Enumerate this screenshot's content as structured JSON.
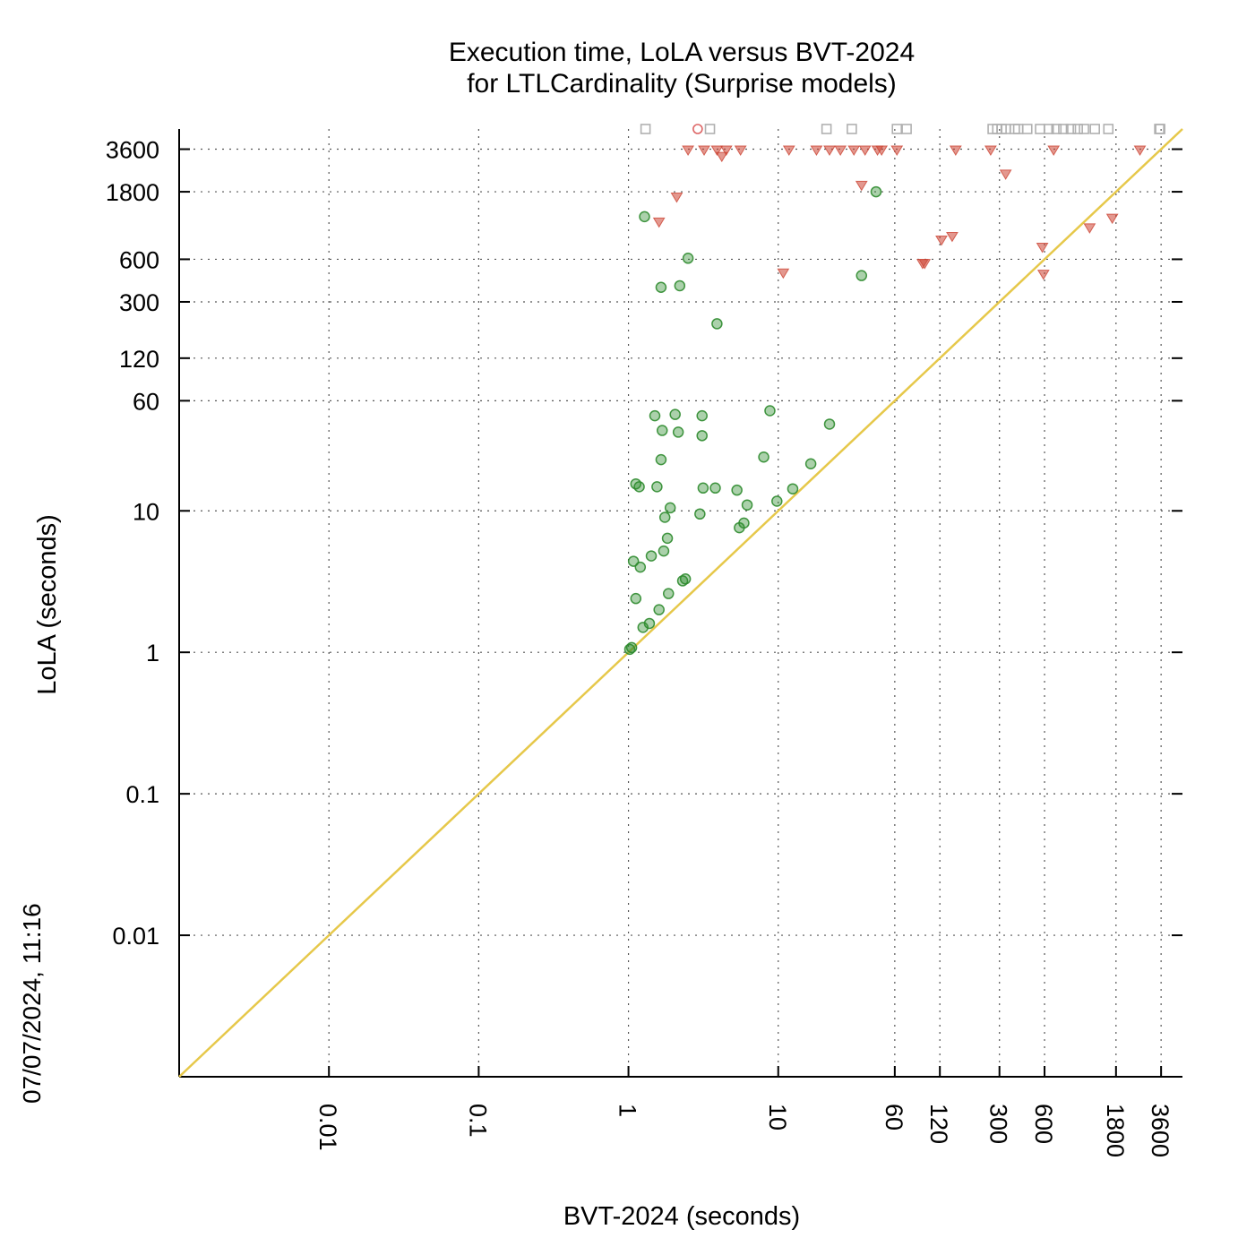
{
  "chart_data": {
    "type": "scatter",
    "title": "Execution time, LoLA versus BVT-2024",
    "subtitle": "for LTLCardinality (Surprise models)",
    "xlabel": "BVT-2024 (seconds)",
    "ylabel": "LoLA (seconds)",
    "timestamp": "07/07/2024, 11:16",
    "x_scale": "log",
    "y_scale": "log",
    "xlim": [
      0.001,
      5000
    ],
    "ylim": [
      0.001,
      5000
    ],
    "grid": true,
    "x_ticks": [
      {
        "value": 0.01,
        "label": "0.01"
      },
      {
        "value": 0.1,
        "label": "0.1"
      },
      {
        "value": 1,
        "label": "1"
      },
      {
        "value": 10,
        "label": "10"
      },
      {
        "value": 60,
        "label": "60"
      },
      {
        "value": 120,
        "label": "120"
      },
      {
        "value": 300,
        "label": "300"
      },
      {
        "value": 600,
        "label": "600"
      },
      {
        "value": 1800,
        "label": "1800"
      },
      {
        "value": 3600,
        "label": "3600"
      }
    ],
    "y_ticks": [
      {
        "value": 0.01,
        "label": "0.01"
      },
      {
        "value": 0.1,
        "label": "0.1"
      },
      {
        "value": 1,
        "label": "1"
      },
      {
        "value": 10,
        "label": "10"
      },
      {
        "value": 60,
        "label": "60"
      },
      {
        "value": 120,
        "label": "120"
      },
      {
        "value": 300,
        "label": "300"
      },
      {
        "value": 600,
        "label": "600"
      },
      {
        "value": 1800,
        "label": "1800"
      },
      {
        "value": 3600,
        "label": "3600"
      }
    ],
    "diagonal": {
      "from": 0.001,
      "to": 5000,
      "color": "#e6c84a"
    },
    "series": [
      {
        "marker": "circle",
        "color": "#2e8b2e",
        "points": [
          [
            1.02,
            1.05
          ],
          [
            1.05,
            1.08
          ],
          [
            1.08,
            4.4
          ],
          [
            1.12,
            2.4
          ],
          [
            1.12,
            15.5
          ],
          [
            1.18,
            14.8
          ],
          [
            1.2,
            4.0
          ],
          [
            1.25,
            1.5
          ],
          [
            1.28,
            1200
          ],
          [
            1.38,
            1.6
          ],
          [
            1.42,
            4.8
          ],
          [
            1.5,
            47
          ],
          [
            1.55,
            14.8
          ],
          [
            1.6,
            2.0
          ],
          [
            1.65,
            23
          ],
          [
            1.65,
            380
          ],
          [
            1.68,
            37
          ],
          [
            1.72,
            5.2
          ],
          [
            1.75,
            9.0
          ],
          [
            1.82,
            6.4
          ],
          [
            1.85,
            2.6
          ],
          [
            1.9,
            10.5
          ],
          [
            2.05,
            48
          ],
          [
            2.15,
            36
          ],
          [
            2.2,
            390
          ],
          [
            2.3,
            3.2
          ],
          [
            2.4,
            3.3
          ],
          [
            2.5,
            610
          ],
          [
            3.0,
            9.5
          ],
          [
            3.1,
            47
          ],
          [
            3.1,
            34
          ],
          [
            3.15,
            14.5
          ],
          [
            3.8,
            14.5
          ],
          [
            3.9,
            210
          ],
          [
            5.3,
            14.0
          ],
          [
            5.5,
            7.6
          ],
          [
            5.9,
            8.2
          ],
          [
            6.2,
            11.0
          ],
          [
            8.0,
            24
          ],
          [
            8.8,
            51
          ],
          [
            9.8,
            11.7
          ],
          [
            12.5,
            14.3
          ],
          [
            16.5,
            21.5
          ],
          [
            22,
            41
          ],
          [
            36,
            460
          ],
          [
            45,
            1800
          ]
        ]
      },
      {
        "marker": "triangle-down",
        "color": "#cc4433",
        "points": [
          [
            1.6,
            1100
          ],
          [
            2.1,
            1650
          ],
          [
            2.5,
            3550
          ],
          [
            3.2,
            3550
          ],
          [
            3.9,
            3550
          ],
          [
            4.2,
            3200
          ],
          [
            4.5,
            3550
          ],
          [
            5.6,
            3550
          ],
          [
            10.8,
            480
          ],
          [
            11.8,
            3550
          ],
          [
            18,
            3550
          ],
          [
            22,
            3550
          ],
          [
            26,
            3550
          ],
          [
            32,
            3550
          ],
          [
            36,
            2000
          ],
          [
            38,
            3550
          ],
          [
            46,
            3550
          ],
          [
            49,
            3550
          ],
          [
            62,
            3550
          ],
          [
            92,
            560
          ],
          [
            95,
            560
          ],
          [
            123,
            820
          ],
          [
            145,
            870
          ],
          [
            153,
            3550
          ],
          [
            262,
            3550
          ],
          [
            330,
            2400
          ],
          [
            580,
            730
          ],
          [
            590,
            470
          ],
          [
            690,
            3550
          ],
          [
            1200,
            1000
          ],
          [
            1700,
            1170
          ],
          [
            2600,
            3550
          ]
        ]
      },
      {
        "marker": "circle-open",
        "color": "#dd6666",
        "points": [
          [
            2.9,
            5000
          ]
        ]
      },
      {
        "marker": "square-open",
        "color": "#b0b0b0",
        "points": [
          [
            1.3,
            5000
          ],
          [
            3.5,
            5000
          ],
          [
            21,
            5000
          ],
          [
            31,
            5000
          ],
          [
            62,
            5000
          ],
          [
            72,
            5000
          ],
          [
            270,
            5000
          ],
          [
            290,
            5000
          ],
          [
            310,
            5000
          ],
          [
            330,
            5000
          ],
          [
            380,
            5000
          ],
          [
            400,
            5000
          ],
          [
            460,
            5000
          ],
          [
            560,
            5000
          ],
          [
            640,
            5000
          ],
          [
            720,
            5000
          ],
          [
            800,
            5000
          ],
          [
            900,
            5000
          ],
          [
            1000,
            5000
          ],
          [
            1100,
            5000
          ],
          [
            1300,
            5000
          ],
          [
            1600,
            5000
          ],
          [
            3500,
            5000
          ],
          [
            3550,
            5000
          ]
        ]
      }
    ]
  }
}
